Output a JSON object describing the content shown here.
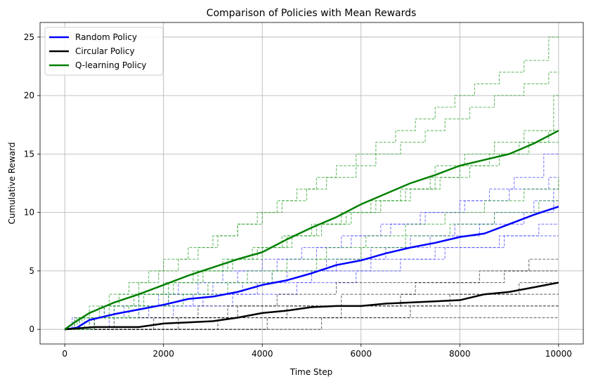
{
  "chart_data": {
    "type": "line",
    "title": "Comparison of Policies with Mean Rewards",
    "xlabel": "Time Step",
    "ylabel": "Cumulative Reward",
    "xlim": [
      -500,
      10500
    ],
    "ylim": [
      -1.25,
      26.25
    ],
    "xticks": [
      0,
      2000,
      4000,
      6000,
      8000,
      10000
    ],
    "yticks": [
      0,
      5,
      10,
      15,
      20,
      25
    ],
    "grid": true,
    "legend_position": "top-left",
    "colors": {
      "random": "#0000ff",
      "circular": "#000000",
      "qlearning": "#008000"
    },
    "series": [
      {
        "name": "Random Policy",
        "color": "#0000ff",
        "x": [
          0,
          250,
          500,
          1000,
          1500,
          2000,
          2500,
          3000,
          3500,
          4000,
          4500,
          5000,
          5500,
          6000,
          6500,
          7000,
          7500,
          8000,
          8500,
          9000,
          9500,
          10000
        ],
        "values": [
          0,
          0.15,
          0.8,
          1.3,
          1.7,
          2.1,
          2.6,
          2.8,
          3.2,
          3.8,
          4.2,
          4.8,
          5.5,
          5.9,
          6.5,
          7.0,
          7.4,
          7.9,
          8.2,
          9.0,
          9.8,
          10.5
        ]
      },
      {
        "name": "Circular Policy",
        "color": "#000000",
        "x": [
          0,
          600,
          1000,
          1500,
          2000,
          2500,
          3000,
          3500,
          4000,
          4500,
          5000,
          5500,
          6000,
          6500,
          7000,
          7500,
          8000,
          8500,
          9000,
          9500,
          10000
        ],
        "values": [
          0,
          0.2,
          0.2,
          0.2,
          0.5,
          0.6,
          0.7,
          1.0,
          1.4,
          1.6,
          1.9,
          2.0,
          2.0,
          2.2,
          2.3,
          2.4,
          2.5,
          3.0,
          3.2,
          3.6,
          4.0
        ]
      },
      {
        "name": "Q-learning Policy",
        "color": "#008000",
        "x": [
          0,
          200,
          500,
          1000,
          1500,
          2000,
          2500,
          3000,
          3500,
          4000,
          4500,
          5000,
          5500,
          6000,
          6500,
          7000,
          7500,
          8000,
          8500,
          9000,
          9500,
          10000
        ],
        "values": [
          0,
          0.6,
          1.4,
          2.3,
          3.0,
          3.8,
          4.6,
          5.3,
          6.0,
          6.6,
          7.7,
          8.7,
          9.6,
          10.7,
          11.6,
          12.5,
          13.2,
          14.0,
          14.5,
          15.0,
          15.9,
          17.0
        ]
      }
    ],
    "runs": [
      {
        "policy": "random",
        "x": [
          0,
          150,
          800,
          1500,
          2300,
          3200,
          4000,
          4800,
          5600,
          6400,
          7200,
          8100,
          9000,
          9800,
          10000
        ],
        "values": [
          0,
          1,
          2,
          3,
          4,
          5,
          6,
          7,
          8,
          9,
          10,
          11,
          12,
          13,
          13
        ]
      },
      {
        "policy": "random",
        "x": [
          0,
          300,
          1200,
          2100,
          3000,
          4200,
          5300,
          6200,
          7000,
          7900,
          8700,
          9500,
          10000
        ],
        "values": [
          0,
          1,
          2,
          3,
          4,
          5,
          6,
          7,
          8,
          9,
          10,
          11,
          11
        ]
      },
      {
        "policy": "random",
        "x": [
          0,
          500,
          1700,
          2800,
          3600,
          4500,
          5500,
          6500,
          7400,
          8400,
          9300,
          9900,
          10000
        ],
        "values": [
          0,
          1,
          2,
          3,
          4,
          5,
          6,
          7,
          8,
          9,
          10,
          12,
          12
        ]
      },
      {
        "policy": "random",
        "x": [
          0,
          900,
          2200,
          3400,
          4700,
          5900,
          6800,
          7700,
          8800,
          9600,
          10000
        ],
        "values": [
          0,
          1,
          2,
          3,
          4,
          5,
          6,
          7,
          8,
          9,
          9
        ]
      },
      {
        "policy": "random",
        "x": [
          0,
          200,
          1000,
          1900,
          2700,
          3500,
          4300,
          5100,
          5800,
          6600,
          7300,
          8000,
          8600,
          9100,
          9700,
          10000
        ],
        "values": [
          0,
          1,
          2,
          3,
          4,
          5,
          6,
          7,
          8,
          9,
          10,
          11,
          12,
          13,
          15,
          15
        ]
      },
      {
        "policy": "random",
        "x": [
          0,
          600,
          1500,
          2600,
          3900,
          5000,
          6200,
          7500,
          8900,
          10000
        ],
        "values": [
          0,
          1,
          2,
          3,
          4,
          5,
          6,
          7,
          8,
          8
        ]
      },
      {
        "policy": "circular",
        "x": [
          0,
          1000,
          3300,
          10000
        ],
        "values": [
          0,
          1,
          2,
          2
        ]
      },
      {
        "policy": "circular",
        "x": [
          0,
          4100,
          7000,
          10000
        ],
        "values": [
          0,
          1,
          2,
          2
        ]
      },
      {
        "policy": "circular",
        "x": [
          0,
          3100,
          5600,
          7800,
          9200,
          10000
        ],
        "values": [
          0,
          1,
          2,
          3,
          4,
          4
        ]
      },
      {
        "policy": "circular",
        "x": [
          0,
          1800,
          3500,
          5600,
          7100,
          8400,
          9400,
          10000
        ],
        "values": [
          0,
          1,
          2,
          3,
          4,
          5,
          6,
          6
        ]
      },
      {
        "policy": "circular",
        "x": [
          0,
          600,
          2700,
          4300,
          5500,
          6900,
          8900,
          10000
        ],
        "values": [
          0,
          1,
          2,
          3,
          4,
          4,
          5,
          5
        ]
      },
      {
        "policy": "circular",
        "x": [
          0,
          2300,
          4500,
          6800,
          9000,
          10000
        ],
        "values": [
          0,
          1,
          2,
          3,
          3,
          3
        ]
      },
      {
        "policy": "circular",
        "x": [
          0,
          5200,
          10000
        ],
        "values": [
          0,
          1,
          1
        ]
      },
      {
        "policy": "qlearning",
        "x": [
          0,
          200,
          500,
          900,
          1300,
          1700,
          2000,
          2500,
          3000,
          3500,
          4000,
          4400,
          4900,
          5300,
          5900,
          6300,
          6800,
          7300,
          7700,
          8200,
          8700,
          9300,
          9800,
          10000
        ],
        "values": [
          0,
          1,
          2,
          3,
          4,
          5,
          6,
          7,
          8,
          9,
          10,
          11,
          12,
          13,
          14,
          15,
          16,
          17,
          18,
          19,
          20,
          21,
          22,
          22
        ]
      },
      {
        "policy": "qlearning",
        "x": [
          0,
          300,
          700,
          1100,
          1500,
          1900,
          2300,
          2700,
          3100,
          3500,
          3900,
          4300,
          4700,
          5100,
          5500,
          5900,
          6300,
          6700,
          7100,
          7500,
          7900,
          8300,
          8800,
          9300,
          9800,
          10000
        ],
        "values": [
          0,
          1,
          2,
          3,
          4,
          5,
          6,
          7,
          8,
          9,
          10,
          11,
          12,
          13,
          14,
          15,
          16,
          17,
          18,
          19,
          20,
          21,
          22,
          23,
          25,
          25
        ]
      },
      {
        "policy": "qlearning",
        "x": [
          0,
          400,
          1000,
          1600,
          2200,
          2800,
          3400,
          4000,
          4600,
          5200,
          5800,
          6400,
          7000,
          7600,
          8200,
          8800,
          9400,
          10000
        ],
        "values": [
          0,
          1,
          2,
          3,
          4,
          5,
          6,
          7,
          8,
          9,
          10,
          11,
          12,
          13,
          14,
          15,
          16,
          16
        ]
      },
      {
        "policy": "qlearning",
        "x": [
          0,
          500,
          1300,
          2100,
          2900,
          3700,
          4500,
          5300,
          6100,
          6900,
          7700,
          8500,
          9300,
          10000
        ],
        "values": [
          0,
          1,
          2,
          3,
          4,
          5,
          6,
          7,
          8,
          9,
          10,
          11,
          12,
          13
        ]
      },
      {
        "policy": "qlearning",
        "x": [
          0,
          250,
          800,
          1400,
          2000,
          2600,
          3200,
          3800,
          4400,
          5000,
          5600,
          6200,
          6800,
          7400,
          8000,
          8600,
          9200,
          9800,
          10000
        ],
        "values": [
          0,
          1,
          2,
          3,
          4,
          5,
          6,
          7,
          8,
          9,
          10,
          11,
          12,
          13,
          14,
          15,
          16,
          17,
          17
        ]
      },
      {
        "policy": "qlearning",
        "x": [
          0,
          600,
          1500,
          2400,
          3300,
          4200,
          5100,
          6000,
          6900,
          7800,
          8700,
          9600,
          10000
        ],
        "values": [
          0,
          1,
          2,
          3,
          4,
          5,
          6,
          7,
          8,
          9,
          10,
          11,
          11
        ]
      },
      {
        "policy": "qlearning",
        "x": [
          0,
          350,
          900,
          1500,
          2100,
          2700,
          3300,
          3900,
          4500,
          5100,
          5700,
          6300,
          6900,
          7500,
          8100,
          8700,
          9300,
          9900,
          10000
        ],
        "values": [
          0,
          1,
          2,
          3,
          4,
          5,
          6,
          7,
          8,
          9,
          10,
          11,
          12,
          14,
          15,
          16,
          17,
          20,
          20
        ]
      }
    ]
  }
}
